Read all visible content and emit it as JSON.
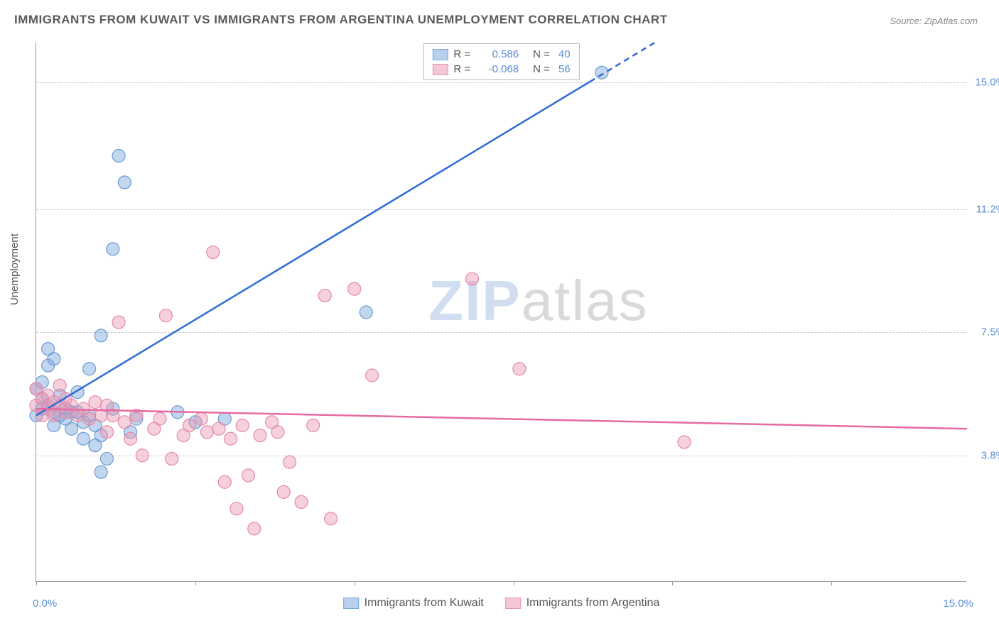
{
  "title": "IMMIGRANTS FROM KUWAIT VS IMMIGRANTS FROM ARGENTINA UNEMPLOYMENT CORRELATION CHART",
  "source": "Source: ZipAtlas.com",
  "ylabel": "Unemployment",
  "watermark_z": "ZIP",
  "watermark_rest": "atlas",
  "chart": {
    "type": "scatter",
    "xlim": [
      0,
      15.8
    ],
    "ylim": [
      0,
      16.2
    ],
    "yticks": [
      {
        "v": 3.8,
        "label": "3.8%"
      },
      {
        "v": 7.5,
        "label": "7.5%"
      },
      {
        "v": 11.2,
        "label": "11.2%"
      },
      {
        "v": 15.0,
        "label": "15.0%"
      }
    ],
    "xtick_positions": [
      0,
      2.7,
      5.4,
      8.1,
      10.8,
      13.5
    ],
    "xaxis_left_label": "0.0%",
    "xaxis_right_label": "15.0%",
    "series": [
      {
        "name": "Immigrants from Kuwait",
        "color_fill": "rgba(120,165,220,0.45)",
        "color_stroke": "#6b9bd1",
        "swatch_fill": "#b8d0ec",
        "swatch_border": "#7aa8d8",
        "R": "0.586",
        "N": "40",
        "trend": {
          "x1": 0.0,
          "y1": 5.0,
          "x2": 10.5,
          "y2": 16.2,
          "dash_from_x": 9.4
        },
        "points": [
          [
            0.0,
            5.8
          ],
          [
            0.0,
            5.0
          ],
          [
            0.1,
            5.2
          ],
          [
            0.1,
            5.5
          ],
          [
            0.1,
            6.0
          ],
          [
            0.2,
            7.0
          ],
          [
            0.2,
            6.5
          ],
          [
            0.2,
            5.3
          ],
          [
            0.3,
            5.1
          ],
          [
            0.3,
            4.7
          ],
          [
            0.3,
            6.7
          ],
          [
            0.4,
            5.6
          ],
          [
            0.4,
            5.0
          ],
          [
            0.5,
            5.2
          ],
          [
            0.5,
            4.9
          ],
          [
            0.6,
            4.6
          ],
          [
            0.6,
            5.1
          ],
          [
            0.7,
            5.7
          ],
          [
            0.7,
            5.1
          ],
          [
            0.8,
            4.3
          ],
          [
            0.8,
            4.8
          ],
          [
            0.9,
            6.4
          ],
          [
            0.9,
            5.0
          ],
          [
            1.0,
            4.1
          ],
          [
            1.0,
            4.7
          ],
          [
            1.1,
            3.3
          ],
          [
            1.1,
            7.4
          ],
          [
            1.1,
            4.4
          ],
          [
            1.2,
            3.7
          ],
          [
            1.3,
            5.2
          ],
          [
            1.3,
            10.0
          ],
          [
            1.4,
            12.8
          ],
          [
            1.5,
            12.0
          ],
          [
            1.6,
            4.5
          ],
          [
            1.7,
            4.9
          ],
          [
            2.4,
            5.1
          ],
          [
            2.7,
            4.8
          ],
          [
            3.2,
            4.9
          ],
          [
            5.6,
            8.1
          ],
          [
            9.6,
            15.3
          ]
        ]
      },
      {
        "name": "Immigrants from Argentina",
        "color_fill": "rgba(235,150,180,0.45)",
        "color_stroke": "#e389ab",
        "swatch_fill": "#f5c6d7",
        "swatch_border": "#e796b5",
        "R": "-0.068",
        "N": "56",
        "trend": {
          "x1": 0.0,
          "y1": 5.2,
          "x2": 15.8,
          "y2": 4.6,
          "dash_from_x": 999
        },
        "points": [
          [
            0.0,
            5.8
          ],
          [
            0.0,
            5.3
          ],
          [
            0.1,
            5.5
          ],
          [
            0.1,
            5.0
          ],
          [
            0.2,
            5.6
          ],
          [
            0.2,
            5.2
          ],
          [
            0.3,
            5.0
          ],
          [
            0.3,
            5.4
          ],
          [
            0.4,
            5.9
          ],
          [
            0.4,
            5.3
          ],
          [
            0.5,
            5.5
          ],
          [
            0.5,
            5.1
          ],
          [
            0.6,
            5.3
          ],
          [
            0.7,
            5.0
          ],
          [
            0.8,
            5.2
          ],
          [
            0.9,
            4.9
          ],
          [
            1.0,
            5.4
          ],
          [
            1.1,
            5.0
          ],
          [
            1.2,
            4.5
          ],
          [
            1.2,
            5.3
          ],
          [
            1.3,
            5.0
          ],
          [
            1.4,
            7.8
          ],
          [
            1.5,
            4.8
          ],
          [
            1.6,
            4.3
          ],
          [
            1.7,
            5.0
          ],
          [
            1.8,
            3.8
          ],
          [
            2.0,
            4.6
          ],
          [
            2.1,
            4.9
          ],
          [
            2.2,
            8.0
          ],
          [
            2.3,
            3.7
          ],
          [
            2.5,
            4.4
          ],
          [
            2.6,
            4.7
          ],
          [
            2.8,
            4.9
          ],
          [
            2.9,
            4.5
          ],
          [
            3.0,
            9.9
          ],
          [
            3.1,
            4.6
          ],
          [
            3.2,
            3.0
          ],
          [
            3.3,
            4.3
          ],
          [
            3.4,
            2.2
          ],
          [
            3.5,
            4.7
          ],
          [
            3.6,
            3.2
          ],
          [
            3.7,
            1.6
          ],
          [
            3.8,
            4.4
          ],
          [
            4.0,
            4.8
          ],
          [
            4.1,
            4.5
          ],
          [
            4.2,
            2.7
          ],
          [
            4.3,
            3.6
          ],
          [
            4.5,
            2.4
          ],
          [
            4.7,
            4.7
          ],
          [
            4.9,
            8.6
          ],
          [
            5.0,
            1.9
          ],
          [
            5.4,
            8.8
          ],
          [
            5.7,
            6.2
          ],
          [
            7.4,
            9.1
          ],
          [
            8.2,
            6.4
          ],
          [
            11.0,
            4.2
          ]
        ]
      }
    ],
    "marker_radius": 9,
    "trend_width": 2.5,
    "background": "#ffffff",
    "grid_color": "#cccccc"
  },
  "legend_bottom": [
    {
      "label": "Immigrants from Kuwait",
      "fill": "#b8d0ec",
      "border": "#7aa8d8"
    },
    {
      "label": "Immigrants from Argentina",
      "fill": "#f5c6d7",
      "border": "#e796b5"
    }
  ]
}
